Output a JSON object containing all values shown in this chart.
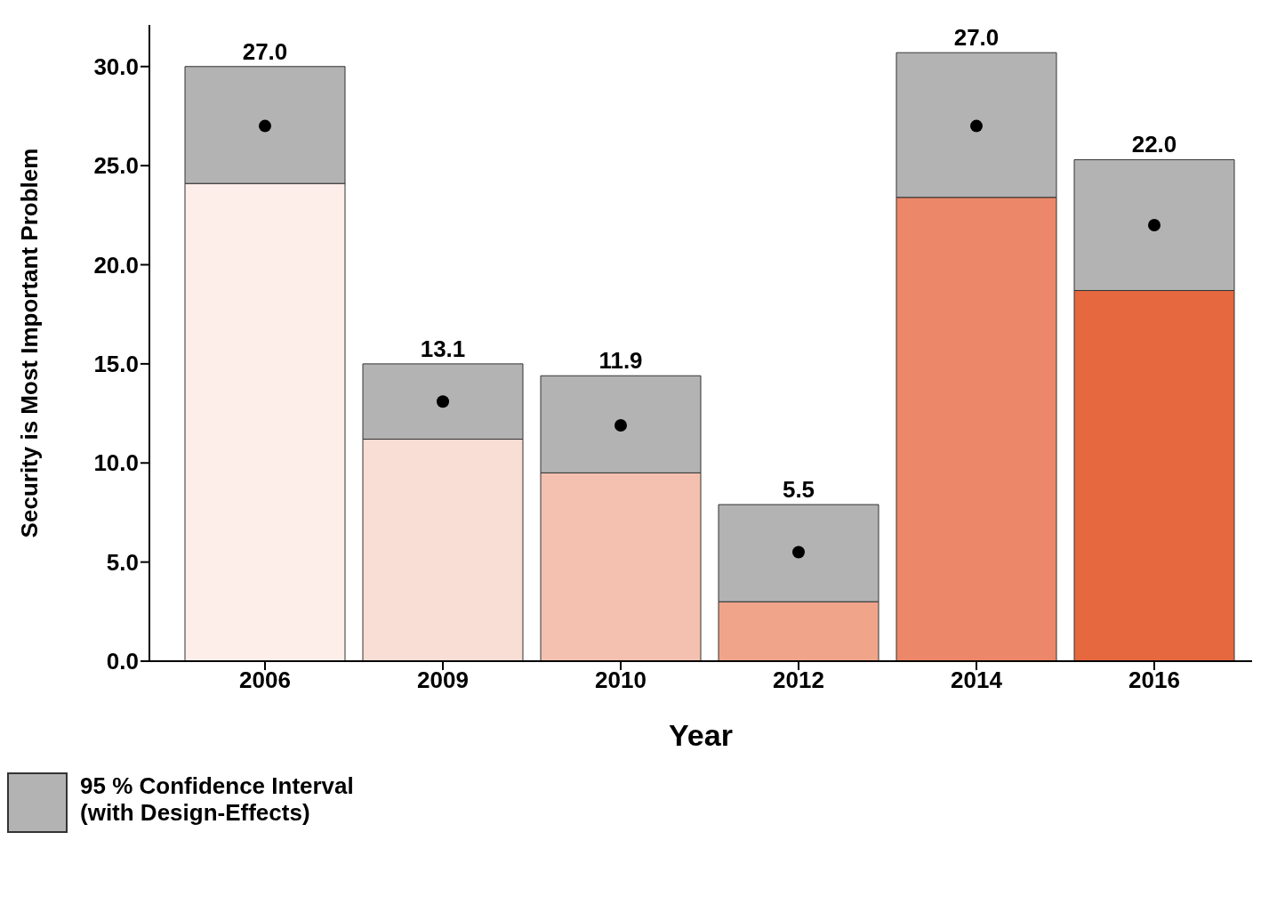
{
  "chart_data": {
    "type": "bar",
    "stacked": true,
    "xlabel": "Year",
    "ylabel": "Security is Most Important Problem",
    "categories": [
      "2006",
      "2009",
      "2010",
      "2012",
      "2014",
      "2016"
    ],
    "series": [
      {
        "colors": [
          "#fdeeea",
          "#f9ded5",
          "#f4c1b0",
          "#f0a58b",
          "#ec8769",
          "#e6683f"
        ],
        "values": [
          24.1,
          11.2,
          9.5,
          3.0,
          23.4,
          18.7
        ]
      },
      {
        "name": "95 % Confidence Interval (with Design-Effects)",
        "color": "#b3b3b3",
        "values": [
          5.9,
          3.8,
          4.9,
          4.9,
          7.3,
          6.6
        ]
      },
      {
        "type": "scatter",
        "color": "#000000",
        "values": [
          27.0,
          13.1,
          11.9,
          5.5,
          27.0,
          22.0
        ],
        "value_labels": [
          "27.0",
          "13.1",
          "11.9",
          "5.5",
          "27.0",
          "22.0"
        ]
      }
    ],
    "marker": "circle",
    "ylim": [
      0,
      32.1
    ],
    "yticks": [
      {
        "value": 0,
        "label": "0.0"
      },
      {
        "value": 5,
        "label": "5.0"
      },
      {
        "value": 10,
        "label": "10.0"
      },
      {
        "value": 15,
        "label": "15.0"
      },
      {
        "value": 20,
        "label": "20.0"
      },
      {
        "value": 25,
        "label": "25.0"
      },
      {
        "value": 30,
        "label": "30.0"
      }
    ],
    "legend": "bottom left"
  }
}
